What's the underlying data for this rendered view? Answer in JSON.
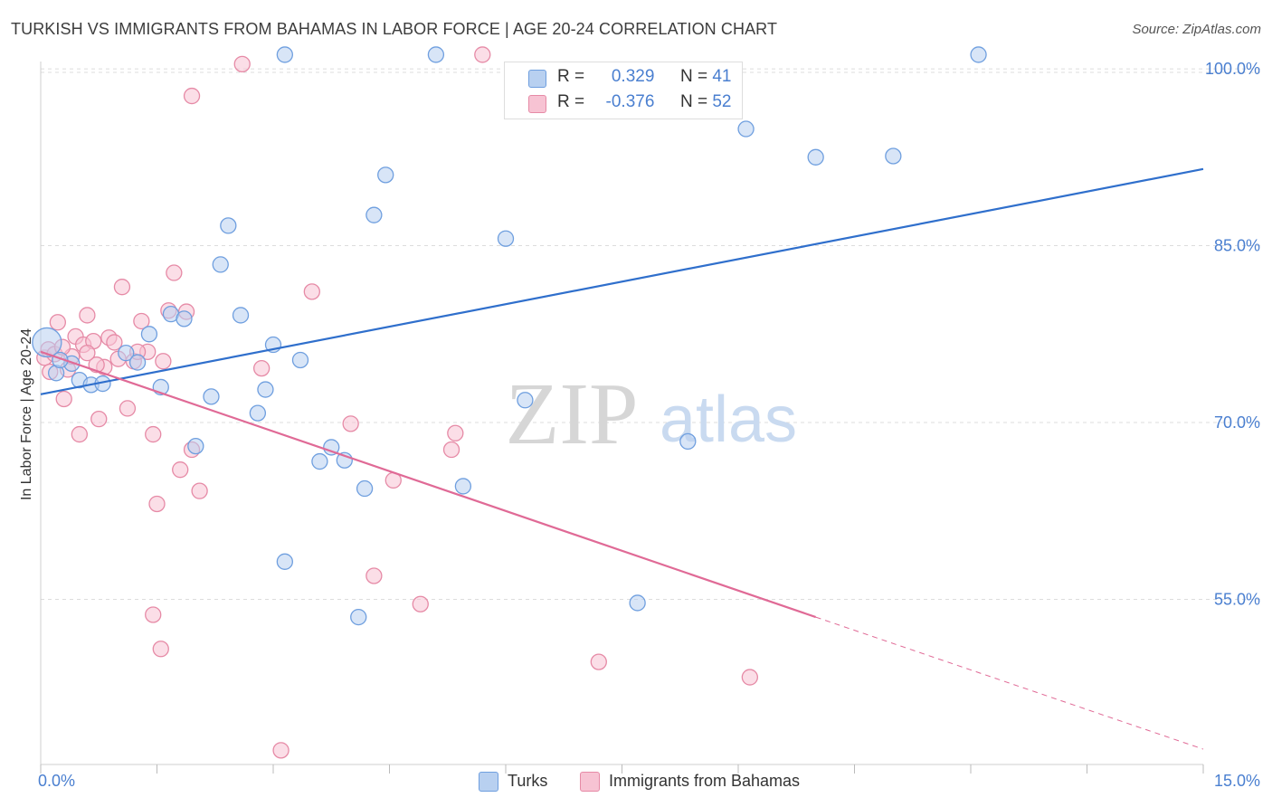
{
  "title": "TURKISH VS IMMIGRANTS FROM BAHAMAS IN LABOR FORCE | AGE 20-24 CORRELATION CHART",
  "source": "Source: ZipAtlas.com",
  "watermark": {
    "zip": "ZIP",
    "atlas": "atlas"
  },
  "legend": {
    "turks": {
      "r_label": "R =",
      "r_value": "0.329",
      "n_label": "N =",
      "n_value": "41"
    },
    "bahamas": {
      "r_label": "R =",
      "r_value": "-0.376",
      "n_label": "N =",
      "n_value": "52"
    }
  },
  "bottom_legend": {
    "turks": "Turks",
    "bahamas": "Immigrants from Bahamas"
  },
  "colors": {
    "turks_fill": "#b8d0f0",
    "turks_stroke": "#6f9fdf",
    "turks_line": "#2f6fcc",
    "bahamas_fill": "#f7c3d3",
    "bahamas_stroke": "#e68aa6",
    "bahamas_line": "#e06a96",
    "axis_text": "#4a7fd0",
    "grid": "#dcdcdc"
  },
  "chart_data": {
    "type": "scatter",
    "title": "TURKISH VS IMMIGRANTS FROM BAHAMAS IN LABOR FORCE | AGE 20-24 CORRELATION CHART",
    "xlabel": "",
    "ylabel": "In Labor Force | Age 20-24",
    "xlim": [
      0,
      15
    ],
    "ylim": [
      41,
      102
    ],
    "x_ticks": [
      0,
      15
    ],
    "x_tick_labels": [
      "0.0%",
      "15.0%"
    ],
    "y_ticks": [
      55,
      70,
      85,
      100
    ],
    "y_tick_labels": [
      "55.0%",
      "70.0%",
      "85.0%",
      "100.0%"
    ],
    "series": [
      {
        "name": "Turks",
        "trend": {
          "x": [
            0,
            15
          ],
          "y": [
            72.4,
            91.5
          ]
        },
        "points": [
          {
            "x": 0.08,
            "y": 76.8,
            "big": true
          },
          {
            "x": 0.2,
            "y": 74.2
          },
          {
            "x": 0.4,
            "y": 75.0
          },
          {
            "x": 0.5,
            "y": 73.6
          },
          {
            "x": 0.65,
            "y": 73.2
          },
          {
            "x": 0.8,
            "y": 73.3
          },
          {
            "x": 1.1,
            "y": 75.9
          },
          {
            "x": 1.25,
            "y": 75.1
          },
          {
            "x": 1.4,
            "y": 77.5
          },
          {
            "x": 1.55,
            "y": 73.0
          },
          {
            "x": 1.68,
            "y": 79.2
          },
          {
            "x": 1.85,
            "y": 78.8
          },
          {
            "x": 2.0,
            "y": 68.0
          },
          {
            "x": 2.2,
            "y": 72.2
          },
          {
            "x": 2.32,
            "y": 83.4
          },
          {
            "x": 2.42,
            "y": 86.7
          },
          {
            "x": 2.58,
            "y": 79.1
          },
          {
            "x": 2.8,
            "y": 70.8
          },
          {
            "x": 2.9,
            "y": 72.8
          },
          {
            "x": 3.0,
            "y": 76.6
          },
          {
            "x": 3.15,
            "y": 58.2
          },
          {
            "x": 3.35,
            "y": 75.3
          },
          {
            "x": 3.6,
            "y": 66.7
          },
          {
            "x": 3.75,
            "y": 67.9
          },
          {
            "x": 3.92,
            "y": 66.8
          },
          {
            "x": 4.1,
            "y": 53.5
          },
          {
            "x": 4.18,
            "y": 64.4
          },
          {
            "x": 4.3,
            "y": 87.6
          },
          {
            "x": 4.45,
            "y": 91.0
          },
          {
            "x": 3.15,
            "y": 101.2
          },
          {
            "x": 5.1,
            "y": 101.2
          },
          {
            "x": 5.45,
            "y": 64.6
          },
          {
            "x": 6.0,
            "y": 85.6
          },
          {
            "x": 6.25,
            "y": 71.9
          },
          {
            "x": 7.7,
            "y": 54.7
          },
          {
            "x": 8.35,
            "y": 68.4
          },
          {
            "x": 9.1,
            "y": 94.9
          },
          {
            "x": 10.0,
            "y": 92.5
          },
          {
            "x": 11.0,
            "y": 92.6
          },
          {
            "x": 12.1,
            "y": 101.2
          },
          {
            "x": 0.25,
            "y": 75.3
          }
        ]
      },
      {
        "name": "Immigrants from Bahamas",
        "trend": {
          "x": [
            0,
            10.0
          ],
          "y": [
            76.0,
            53.5
          ]
        },
        "trend_extension": {
          "x": [
            10.0,
            15
          ],
          "y": [
            53.5,
            42.3
          ]
        },
        "points": [
          {
            "x": 0.05,
            "y": 75.5
          },
          {
            "x": 0.1,
            "y": 76.2
          },
          {
            "x": 0.18,
            "y": 75.8
          },
          {
            "x": 0.22,
            "y": 78.5
          },
          {
            "x": 0.3,
            "y": 72.0
          },
          {
            "x": 0.35,
            "y": 74.5
          },
          {
            "x": 0.45,
            "y": 77.3
          },
          {
            "x": 0.5,
            "y": 69.0
          },
          {
            "x": 0.55,
            "y": 76.6
          },
          {
            "x": 0.6,
            "y": 79.1
          },
          {
            "x": 0.68,
            "y": 76.9
          },
          {
            "x": 0.75,
            "y": 70.3
          },
          {
            "x": 0.82,
            "y": 74.7
          },
          {
            "x": 0.88,
            "y": 77.2
          },
          {
            "x": 0.95,
            "y": 76.8
          },
          {
            "x": 1.05,
            "y": 81.5
          },
          {
            "x": 1.12,
            "y": 71.2
          },
          {
            "x": 1.2,
            "y": 75.2
          },
          {
            "x": 1.3,
            "y": 78.6
          },
          {
            "x": 1.38,
            "y": 76.0
          },
          {
            "x": 1.45,
            "y": 69.0
          },
          {
            "x": 1.5,
            "y": 63.1
          },
          {
            "x": 1.58,
            "y": 75.2
          },
          {
            "x": 1.65,
            "y": 79.5
          },
          {
            "x": 1.72,
            "y": 82.7
          },
          {
            "x": 1.8,
            "y": 66.0
          },
          {
            "x": 1.88,
            "y": 79.4
          },
          {
            "x": 1.95,
            "y": 67.7
          },
          {
            "x": 2.05,
            "y": 64.2
          },
          {
            "x": 1.45,
            "y": 53.7
          },
          {
            "x": 1.55,
            "y": 50.8
          },
          {
            "x": 1.95,
            "y": 97.7
          },
          {
            "x": 2.6,
            "y": 100.4
          },
          {
            "x": 2.85,
            "y": 74.6
          },
          {
            "x": 3.1,
            "y": 42.2
          },
          {
            "x": 3.5,
            "y": 81.1
          },
          {
            "x": 4.0,
            "y": 69.9
          },
          {
            "x": 4.3,
            "y": 57.0
          },
          {
            "x": 4.55,
            "y": 65.1
          },
          {
            "x": 4.9,
            "y": 54.6
          },
          {
            "x": 5.3,
            "y": 67.7
          },
          {
            "x": 5.35,
            "y": 69.1
          },
          {
            "x": 5.7,
            "y": 101.2
          },
          {
            "x": 7.2,
            "y": 49.7
          },
          {
            "x": 9.15,
            "y": 48.4
          },
          {
            "x": 0.12,
            "y": 74.3
          },
          {
            "x": 0.4,
            "y": 75.6
          },
          {
            "x": 0.72,
            "y": 74.9
          },
          {
            "x": 1.0,
            "y": 75.4
          },
          {
            "x": 0.28,
            "y": 76.4
          },
          {
            "x": 1.25,
            "y": 76.0
          },
          {
            "x": 0.6,
            "y": 75.9
          }
        ]
      }
    ]
  }
}
